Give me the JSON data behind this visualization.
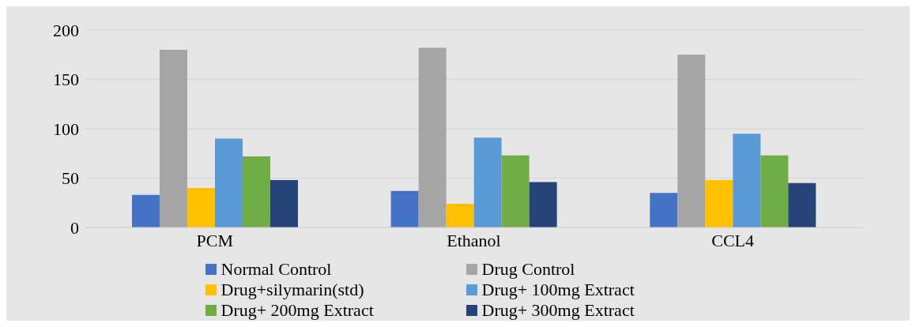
{
  "chart_data": {
    "type": "bar",
    "categories": [
      "PCM",
      "Ethanol",
      "CCL4"
    ],
    "series": [
      {
        "name": "Normal Control",
        "color": "#4472c4",
        "values": [
          33,
          37,
          35
        ]
      },
      {
        "name": "Drug Control",
        "color": "#a5a5a5",
        "values": [
          180,
          182,
          175
        ]
      },
      {
        "name": "Drug+silymarin(std)",
        "color": "#ffc000",
        "values": [
          40,
          24,
          48
        ]
      },
      {
        "name": "Drug+ 100mg Extract",
        "color": "#5b9bd5",
        "values": [
          90,
          91,
          95
        ]
      },
      {
        "name": "Drug+ 200mg Extract",
        "color": "#70ad47",
        "values": [
          72,
          73,
          73
        ]
      },
      {
        "name": "Drug+ 300mg Extract",
        "color": "#264478",
        "values": [
          48,
          46,
          45
        ]
      }
    ],
    "ylim": [
      0,
      200
    ],
    "yticks": [
      0,
      50,
      100,
      150,
      200
    ],
    "grid": "y",
    "legend": "bottom"
  }
}
